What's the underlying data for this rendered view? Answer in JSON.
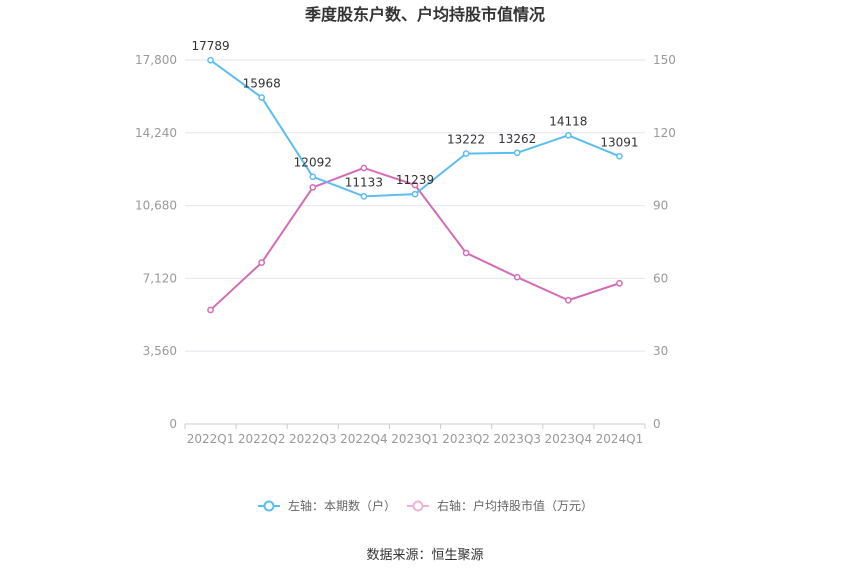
{
  "chart_data": {
    "type": "line",
    "title": "季度股东户数、户均持股市值情况",
    "categories": [
      "2022Q1",
      "2022Q2",
      "2022Q3",
      "2022Q4",
      "2023Q1",
      "2023Q2",
      "2023Q3",
      "2023Q4",
      "2024Q1"
    ],
    "left_axis": {
      "min": 0,
      "max": 17800,
      "ticks": [
        0,
        3560,
        7120,
        10680,
        14240,
        17800
      ],
      "tick_labels": [
        "0",
        "3,560",
        "7,120",
        "10,680",
        "14,240",
        "17,800"
      ]
    },
    "right_axis": {
      "min": 0,
      "max": 150,
      "ticks": [
        0,
        30,
        60,
        90,
        120,
        150
      ],
      "tick_labels": [
        "0",
        "30",
        "60",
        "90",
        "120",
        "150"
      ]
    },
    "grid": true,
    "legend_position": "bottom",
    "series": [
      {
        "name": "左轴：本期数（户）",
        "axis": "left",
        "color": "#5bbdf0",
        "values": [
          17789,
          15968,
          12092,
          11133,
          11239,
          13222,
          13262,
          14118,
          13091
        ],
        "labels": [
          "17789",
          "15968",
          "12092",
          "11133",
          "11239",
          "13222",
          "13262",
          "14118",
          "13091"
        ]
      },
      {
        "name": "右轴：户均持股市值（万元）",
        "axis": "right",
        "color": "#d46cb5",
        "values": [
          47,
          66.5,
          97.5,
          105.5,
          98.5,
          70.5,
          60.5,
          51,
          58
        ]
      }
    ]
  },
  "source": "数据来源：恒生聚源"
}
